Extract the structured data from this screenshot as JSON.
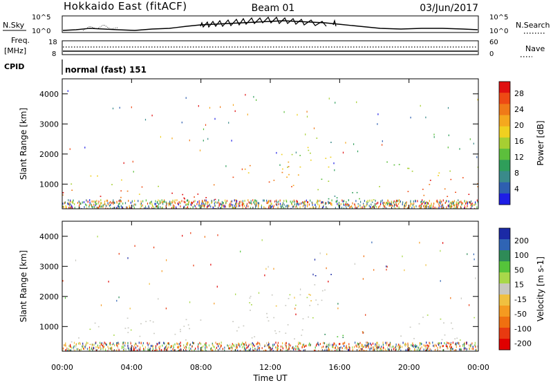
{
  "header": {
    "station": "Hokkaido East (fitACF)",
    "beam": "Beam 01",
    "date": "03/Jun/2017"
  },
  "top_panels": {
    "nsky": {
      "label": "N.Sky",
      "tick_hi": "10^5",
      "tick_lo": "10^0"
    },
    "nsearch": {
      "label": "N.Search",
      "tick_hi": "10^5",
      "tick_lo": "10^0"
    },
    "freq": {
      "label": "Freq.",
      "units": "[MHz]",
      "tick_hi": "18",
      "tick_lo": "8"
    },
    "nave": {
      "label": "Nave",
      "tick_hi": "60",
      "tick_lo": "0"
    },
    "cpid": {
      "label": "CPID",
      "value": "normal (fast) 151"
    }
  },
  "chart_data": [
    {
      "type": "heatmap",
      "title": "",
      "xlabel": "Time UT",
      "ylabel": "Slant Range [km]",
      "xticks": [
        "00:00",
        "04:00",
        "08:00",
        "12:00",
        "16:00",
        "20:00",
        "00:00"
      ],
      "yticks": [
        "1000",
        "2000",
        "3000",
        "4000"
      ],
      "colorbar": {
        "label": "Power [dB]",
        "ticks": [
          "4",
          "8",
          "12",
          "16",
          "20",
          "24",
          "28"
        ],
        "colors": [
          "#1e1ee6",
          "#2e5fb0",
          "#3a8a8a",
          "#2f9e5a",
          "#5cbf3c",
          "#a6cf32",
          "#f0d020",
          "#f5a81e",
          "#f07a18",
          "#ee4a14",
          "#e01010"
        ]
      },
      "xlim": [
        0,
        24
      ],
      "ylim": [
        180,
        4500
      ]
    },
    {
      "type": "heatmap",
      "title": "",
      "xlabel": "Time UT",
      "ylabel": "Slant Range [km]",
      "xticks": [
        "00:00",
        "04:00",
        "08:00",
        "12:00",
        "16:00",
        "20:00",
        "00:00"
      ],
      "yticks": [
        "1000",
        "2000",
        "3000",
        "4000"
      ],
      "colorbar": {
        "label": "Velocity [m s-1]",
        "ticks": [
          "200",
          "100",
          "50",
          "15",
          "-15",
          "-50",
          "-100",
          "-200"
        ],
        "colors": [
          "#1b2aa6",
          "#2f64b4",
          "#2e8b57",
          "#55c43a",
          "#a8d84a",
          "#c8c8c0",
          "#f0c040",
          "#f59a20",
          "#f07010",
          "#e83a10",
          "#e00000"
        ]
      },
      "xlim": [
        0,
        24
      ],
      "ylim": [
        180,
        4500
      ]
    }
  ]
}
